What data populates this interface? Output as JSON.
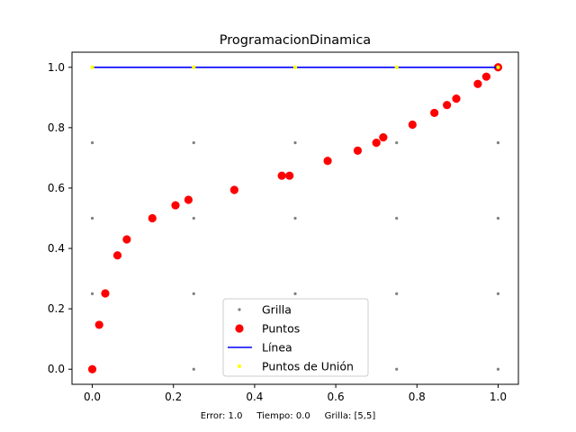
{
  "chart_data": {
    "type": "scatter",
    "title": "ProgramacionDinamica",
    "xlabel": "",
    "ylabel": "",
    "xlim": [
      -0.05,
      1.05
    ],
    "ylim": [
      -0.05,
      1.05
    ],
    "xticks": [
      0.0,
      0.2,
      0.4,
      0.6,
      0.8,
      1.0
    ],
    "yticks": [
      0.0,
      0.2,
      0.4,
      0.6,
      0.8,
      1.0
    ],
    "xtick_labels": [
      "0.0",
      "0.2",
      "0.4",
      "0.6",
      "0.8",
      "1.0"
    ],
    "ytick_labels": [
      "0.0",
      "0.2",
      "0.4",
      "0.6",
      "0.8",
      "1.0"
    ],
    "grid": false,
    "legend_position": "bottom-center",
    "series": [
      {
        "name": "Grilla",
        "kind": "scatter",
        "color": "#808080",
        "x": [
          0,
          0,
          0,
          0,
          0,
          0.25,
          0.25,
          0.25,
          0.25,
          0.25,
          0.5,
          0.5,
          0.5,
          0.5,
          0.5,
          0.75,
          0.75,
          0.75,
          0.75,
          0.75,
          1,
          1,
          1,
          1,
          1
        ],
        "y": [
          0,
          0.25,
          0.5,
          0.75,
          1,
          0,
          0.25,
          0.5,
          0.75,
          1,
          0,
          0.25,
          0.5,
          0.75,
          1,
          0,
          0.25,
          0.5,
          0.75,
          1,
          0,
          0.25,
          0.5,
          0.75,
          1
        ]
      },
      {
        "name": "Puntos",
        "kind": "scatter",
        "color": "#ff0000",
        "x": [
          0.0,
          0.017,
          0.032,
          0.062,
          0.085,
          0.148,
          0.205,
          0.237,
          0.35,
          0.467,
          0.486,
          0.58,
          0.654,
          0.7,
          0.717,
          0.789,
          0.843,
          0.874,
          0.897,
          0.95,
          0.971,
          1.0
        ],
        "y": [
          0.0,
          0.147,
          0.251,
          0.377,
          0.43,
          0.5,
          0.543,
          0.561,
          0.594,
          0.641,
          0.641,
          0.69,
          0.724,
          0.75,
          0.768,
          0.81,
          0.849,
          0.875,
          0.896,
          0.945,
          0.969,
          1.0
        ]
      },
      {
        "name": "Línea",
        "kind": "line",
        "color": "#0000ff",
        "x": [
          0,
          1
        ],
        "y": [
          1,
          1
        ]
      },
      {
        "name": "Puntos de Unión",
        "kind": "scatter",
        "color": "#ffff00",
        "x": [
          0,
          0.25,
          0.5,
          0.75,
          1
        ],
        "y": [
          1,
          1,
          1,
          1,
          1
        ]
      }
    ],
    "footer": {
      "error": "Error: 1.0",
      "tiempo": "Tiempo: 0.0",
      "grilla": "Grilla: [5,5]"
    }
  }
}
